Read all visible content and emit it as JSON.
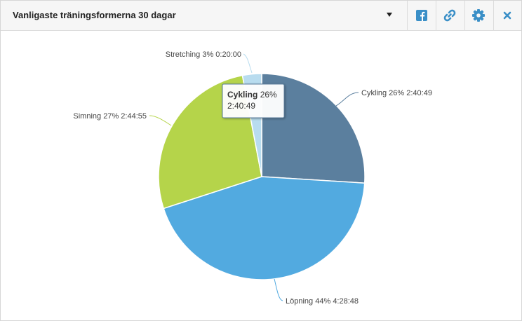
{
  "chart_data": {
    "type": "pie",
    "title": "Vanligaste träningsformerna 30 dagar",
    "categories": [
      "Cykling",
      "Löpning",
      "Simning",
      "Stretching"
    ],
    "values": [
      26,
      44,
      27,
      3
    ],
    "value_labels": [
      "26%",
      "44%",
      "27%",
      "3%"
    ],
    "durations": [
      "2:40:49",
      "4:28:48",
      "2:44:55",
      "0:20:00"
    ],
    "colors": [
      "#5b7f9e",
      "#52aae0",
      "#b5d44a",
      "#b8dcef"
    ],
    "tooltip_index": 0
  }
}
